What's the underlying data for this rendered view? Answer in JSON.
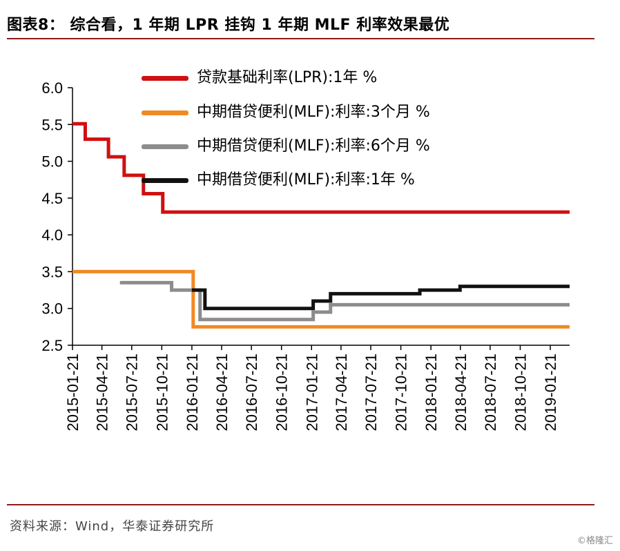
{
  "header": {
    "title": "图表8： 综合看，1 年期 LPR 挂钩 1 年期 MLF 利率效果最优"
  },
  "footer": {
    "source": "资料来源：Wind，华泰证券研究所",
    "watermark": "©格隆汇"
  },
  "chart_data": {
    "type": "line",
    "title": "图表8： 综合看，1 年期 LPR 挂钩 1 年期 MLF 利率效果最优",
    "xlabel": "",
    "ylabel": "",
    "ylim": [
      2.5,
      6.0
    ],
    "yticks": [
      2.5,
      3.0,
      3.5,
      4.0,
      4.5,
      5.0,
      5.5,
      6.0
    ],
    "ytick_labels": [
      "2.5",
      "3.0",
      "3.5",
      "4.0",
      "4.5",
      "5.0",
      "5.5",
      "6.0"
    ],
    "xlim": [
      "2015-01-21",
      "2019-03-21"
    ],
    "xtick_labels": [
      "2015-01-21",
      "2015-04-21",
      "2015-07-21",
      "2015-10-21",
      "2016-01-21",
      "2016-04-21",
      "2016-07-21",
      "2016-10-21",
      "2017-01-21",
      "2017-04-21",
      "2017-07-21",
      "2017-10-21",
      "2018-01-21",
      "2018-04-21",
      "2018-07-21",
      "2018-10-21",
      "2019-01-21"
    ],
    "step": true,
    "legend_position": "top-center",
    "series": [
      {
        "name": "贷款基础利率(LPR):1年 %",
        "color": "#d01010",
        "points": [
          [
            "2015-01-21",
            5.51
          ],
          [
            "2015-03-01",
            5.3
          ],
          [
            "2015-05-11",
            5.06
          ],
          [
            "2015-06-28",
            4.81
          ],
          [
            "2015-08-26",
            4.56
          ],
          [
            "2015-10-24",
            4.31
          ],
          [
            "2018-04-21",
            4.31
          ],
          [
            "2019-03-21",
            4.31
          ]
        ]
      },
      {
        "name": "中期借贷便利(MLF):利率:3个月 %",
        "color": "#f08a24",
        "points": [
          [
            "2015-01-21",
            3.5
          ],
          [
            "2016-01-21",
            3.5
          ],
          [
            "2016-01-25",
            2.75
          ],
          [
            "2019-03-21",
            2.75
          ]
        ]
      },
      {
        "name": "中期借贷便利(MLF):利率:6个月 %",
        "color": "#8c8c8c",
        "points": [
          [
            "2015-06-15",
            3.35
          ],
          [
            "2015-10-20",
            3.35
          ],
          [
            "2015-11-20",
            3.25
          ],
          [
            "2016-01-21",
            3.25
          ],
          [
            "2016-02-15",
            2.85
          ],
          [
            "2017-01-24",
            2.85
          ],
          [
            "2017-01-26",
            2.95
          ],
          [
            "2017-03-16",
            2.95
          ],
          [
            "2017-03-20",
            3.05
          ],
          [
            "2019-03-21",
            3.05
          ]
        ]
      },
      {
        "name": "中期借贷便利(MLF):利率:1年 %",
        "color": "#111111",
        "points": [
          [
            "2016-01-21",
            3.25
          ],
          [
            "2016-02-15",
            3.25
          ],
          [
            "2016-03-01",
            3.0
          ],
          [
            "2017-01-24",
            3.0
          ],
          [
            "2017-01-26",
            3.1
          ],
          [
            "2017-03-16",
            3.1
          ],
          [
            "2017-03-20",
            3.2
          ],
          [
            "2017-12-14",
            3.2
          ],
          [
            "2017-12-18",
            3.25
          ],
          [
            "2018-04-17",
            3.25
          ],
          [
            "2018-04-20",
            3.3
          ],
          [
            "2019-03-21",
            3.3
          ]
        ]
      }
    ]
  }
}
